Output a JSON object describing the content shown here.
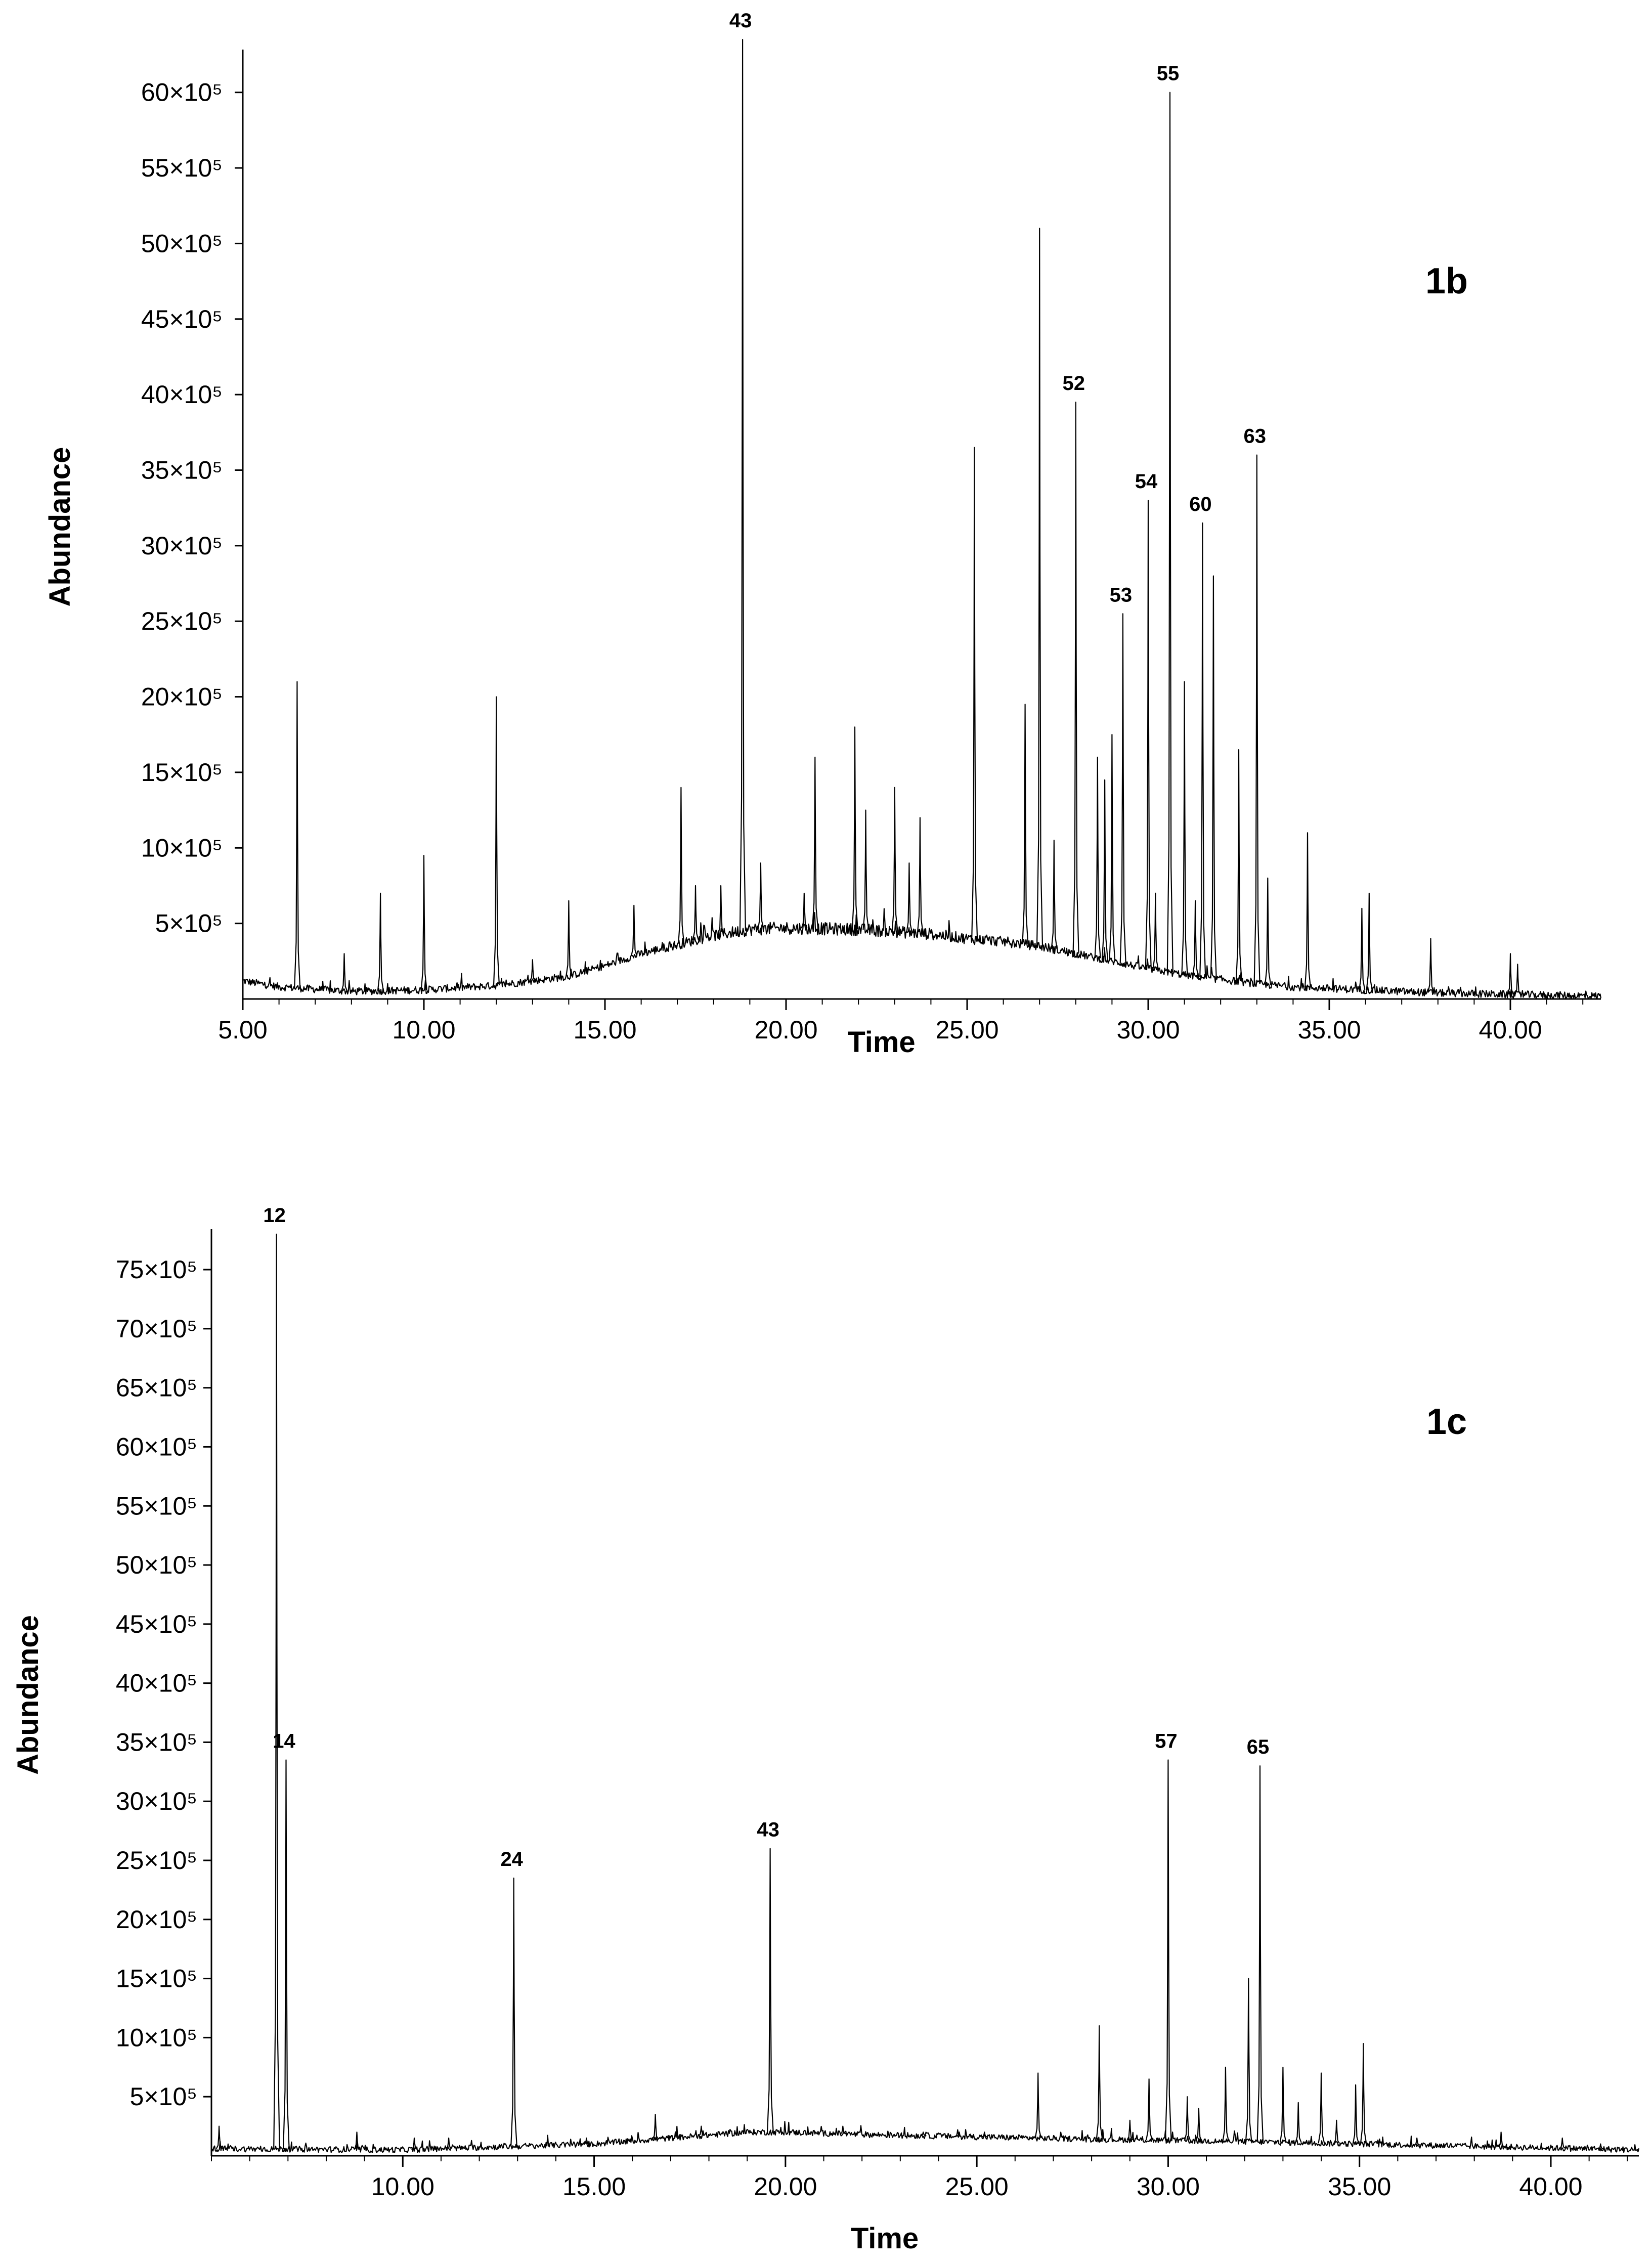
{
  "chart_data": [
    {
      "type": "line",
      "panel_label": "1b",
      "xlabel": "Time",
      "ylabel": "Abundance",
      "xlim": [
        5.0,
        42.5
      ],
      "ylim": [
        0,
        62.5
      ],
      "x_ticks": [
        5,
        10,
        15,
        20,
        25,
        30,
        35,
        40
      ],
      "x_tick_labels": [
        "5.00",
        "10.00",
        "15.00",
        "20.00",
        "25.00",
        "30.00",
        "35.00",
        "40.00"
      ],
      "y_ticks": [
        5,
        10,
        15,
        20,
        25,
        30,
        35,
        40,
        45,
        50,
        55,
        60
      ],
      "y_tick_labels": [
        "5×10⁵",
        "10×10⁵",
        "15×10⁵",
        "20×10⁵",
        "25×10⁵",
        "30×10⁵",
        "35×10⁵",
        "40×10⁵",
        "45×10⁵",
        "50×10⁵",
        "55×10⁵",
        "60×10⁵"
      ],
      "baseline": [
        [
          5.0,
          1.2
        ],
        [
          6.0,
          0.8
        ],
        [
          8.0,
          0.5
        ],
        [
          10.0,
          0.6
        ],
        [
          12.0,
          0.9
        ],
        [
          14.0,
          1.5
        ],
        [
          15.0,
          2.2
        ],
        [
          16.0,
          3.0
        ],
        [
          17.0,
          3.6
        ],
        [
          18.0,
          4.2
        ],
        [
          19.0,
          4.6
        ],
        [
          20.0,
          4.7
        ],
        [
          22.0,
          4.6
        ],
        [
          24.0,
          4.3
        ],
        [
          25.0,
          4.0
        ],
        [
          26.0,
          3.8
        ],
        [
          27.0,
          3.5
        ],
        [
          28.0,
          3.0
        ],
        [
          29.0,
          2.5
        ],
        [
          30.0,
          2.0
        ],
        [
          31.0,
          1.6
        ],
        [
          32.0,
          1.3
        ],
        [
          33.0,
          1.0
        ],
        [
          34.0,
          0.8
        ],
        [
          36.0,
          0.6
        ],
        [
          38.0,
          0.4
        ],
        [
          40.0,
          0.3
        ],
        [
          42.3,
          0.2
        ]
      ],
      "peaks": [
        {
          "x": 6.5,
          "y": 21.0
        },
        {
          "x": 7.8,
          "y": 3.0
        },
        {
          "x": 8.8,
          "y": 7.0
        },
        {
          "x": 10.0,
          "y": 9.5
        },
        {
          "x": 12.0,
          "y": 20.0
        },
        {
          "x": 13.0,
          "y": 2.6
        },
        {
          "x": 14.0,
          "y": 6.5
        },
        {
          "x": 15.8,
          "y": 6.2
        },
        {
          "x": 17.1,
          "y": 14.0
        },
        {
          "x": 17.5,
          "y": 7.5
        },
        {
          "x": 18.2,
          "y": 7.5
        },
        {
          "x": 18.8,
          "y": 63.5,
          "label": "43"
        },
        {
          "x": 19.3,
          "y": 9.0
        },
        {
          "x": 20.5,
          "y": 7.0
        },
        {
          "x": 20.8,
          "y": 16.0
        },
        {
          "x": 21.9,
          "y": 18.0
        },
        {
          "x": 22.2,
          "y": 12.5
        },
        {
          "x": 23.0,
          "y": 14.0
        },
        {
          "x": 23.4,
          "y": 9.0
        },
        {
          "x": 23.7,
          "y": 12.0
        },
        {
          "x": 25.2,
          "y": 36.5
        },
        {
          "x": 26.6,
          "y": 19.5
        },
        {
          "x": 27.0,
          "y": 51.0
        },
        {
          "x": 27.4,
          "y": 10.5
        },
        {
          "x": 28.0,
          "y": 39.5,
          "label": "52"
        },
        {
          "x": 28.6,
          "y": 16.0
        },
        {
          "x": 28.8,
          "y": 14.5
        },
        {
          "x": 29.0,
          "y": 17.5
        },
        {
          "x": 29.3,
          "y": 25.5,
          "label": "53"
        },
        {
          "x": 30.0,
          "y": 33.0,
          "label": "54"
        },
        {
          "x": 30.2,
          "y": 7.0
        },
        {
          "x": 30.6,
          "y": 60.0,
          "label": "55"
        },
        {
          "x": 31.0,
          "y": 21.0
        },
        {
          "x": 31.3,
          "y": 6.5
        },
        {
          "x": 31.5,
          "y": 31.5,
          "label": "60"
        },
        {
          "x": 31.8,
          "y": 28.0
        },
        {
          "x": 32.5,
          "y": 16.5
        },
        {
          "x": 33.0,
          "y": 36.0,
          "label": "63"
        },
        {
          "x": 33.3,
          "y": 8.0
        },
        {
          "x": 34.4,
          "y": 11.0
        },
        {
          "x": 35.9,
          "y": 6.0
        },
        {
          "x": 36.1,
          "y": 7.0
        },
        {
          "x": 37.8,
          "y": 4.0
        },
        {
          "x": 40.0,
          "y": 3.0
        },
        {
          "x": 40.2,
          "y": 2.3
        }
      ]
    },
    {
      "type": "line",
      "panel_label": "1c",
      "xlabel": "Time",
      "ylabel": "Abundance",
      "xlim": [
        5.0,
        42.3
      ],
      "ylim": [
        0,
        78
      ],
      "x_ticks": [
        10,
        15,
        20,
        25,
        30,
        35,
        40
      ],
      "x_tick_labels": [
        "10.00",
        "15.00",
        "20.00",
        "25.00",
        "30.00",
        "35.00",
        "40.00"
      ],
      "y_ticks": [
        5,
        10,
        15,
        20,
        25,
        30,
        35,
        40,
        45,
        50,
        55,
        60,
        65,
        70,
        75
      ],
      "y_tick_labels": [
        "5×10⁵",
        "10×10⁵",
        "15×10⁵",
        "20×10⁵",
        "25×10⁵",
        "30×10⁵",
        "35×10⁵",
        "40×10⁵",
        "45×10⁵",
        "50×10⁵",
        "55×10⁵",
        "60×10⁵",
        "65×10⁵",
        "70×10⁵",
        "75×10⁵"
      ],
      "baseline": [
        [
          5.0,
          0.6
        ],
        [
          10.0,
          0.5
        ],
        [
          15.0,
          1.0
        ],
        [
          17.0,
          1.5
        ],
        [
          19.0,
          2.0
        ],
        [
          20.0,
          2.0
        ],
        [
          22.0,
          1.8
        ],
        [
          25.0,
          1.6
        ],
        [
          28.0,
          1.4
        ],
        [
          30.0,
          1.3
        ],
        [
          32.0,
          1.2
        ],
        [
          35.0,
          1.0
        ],
        [
          38.0,
          0.8
        ],
        [
          42.3,
          0.5
        ]
      ],
      "peaks": [
        {
          "x": 5.2,
          "y": 2.5
        },
        {
          "x": 6.7,
          "y": 78.0,
          "label": "12"
        },
        {
          "x": 6.95,
          "y": 33.5,
          "label": "14"
        },
        {
          "x": 8.8,
          "y": 2.0
        },
        {
          "x": 10.3,
          "y": 1.5
        },
        {
          "x": 11.2,
          "y": 1.5
        },
        {
          "x": 12.9,
          "y": 23.5,
          "label": "24"
        },
        {
          "x": 14.8,
          "y": 1.5
        },
        {
          "x": 16.6,
          "y": 3.5
        },
        {
          "x": 17.8,
          "y": 2.5
        },
        {
          "x": 19.6,
          "y": 26.0,
          "label": "43"
        },
        {
          "x": 21.5,
          "y": 2.5
        },
        {
          "x": 23.6,
          "y": 2.0
        },
        {
          "x": 24.5,
          "y": 2.2
        },
        {
          "x": 25.2,
          "y": 2.0
        },
        {
          "x": 26.6,
          "y": 7.0
        },
        {
          "x": 28.2,
          "y": 11.0
        },
        {
          "x": 29.0,
          "y": 3.0
        },
        {
          "x": 29.5,
          "y": 6.5
        },
        {
          "x": 30.0,
          "y": 33.5,
          "label": "57"
        },
        {
          "x": 30.5,
          "y": 5.0
        },
        {
          "x": 30.8,
          "y": 4.0
        },
        {
          "x": 31.5,
          "y": 7.5
        },
        {
          "x": 32.1,
          "y": 15.0
        },
        {
          "x": 32.4,
          "y": 33.0,
          "label": "65"
        },
        {
          "x": 33.0,
          "y": 7.5
        },
        {
          "x": 33.4,
          "y": 4.5
        },
        {
          "x": 34.0,
          "y": 7.0
        },
        {
          "x": 34.4,
          "y": 3.0
        },
        {
          "x": 34.9,
          "y": 6.0
        },
        {
          "x": 35.1,
          "y": 9.5
        },
        {
          "x": 36.5,
          "y": 1.5
        },
        {
          "x": 38.7,
          "y": 2.0
        },
        {
          "x": 40.3,
          "y": 1.5
        },
        {
          "x": 41.3,
          "y": 1.0
        }
      ]
    }
  ]
}
